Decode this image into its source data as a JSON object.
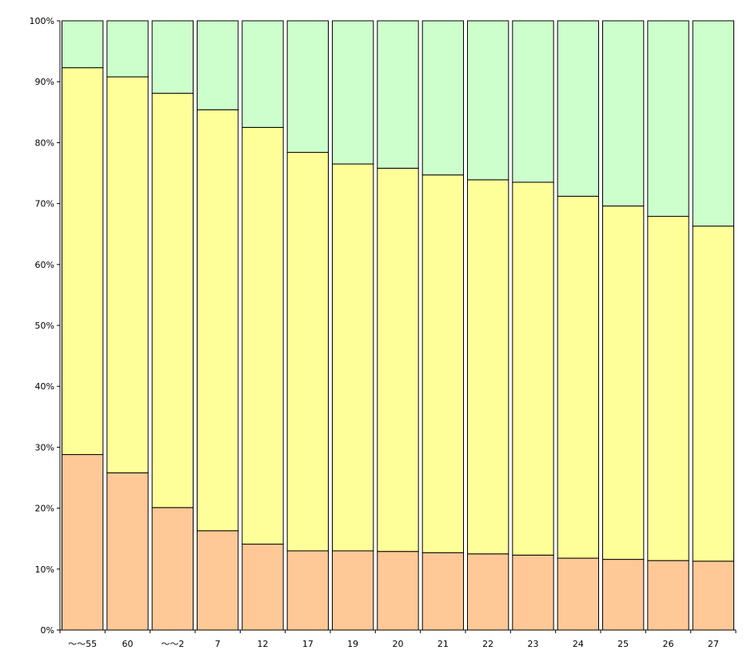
{
  "chart_data": {
    "type": "bar",
    "stacked": true,
    "normalized": true,
    "categories": [
      "～～55",
      "60",
      "～～2",
      "7",
      "12",
      "17",
      "19",
      "20",
      "21",
      "22",
      "23",
      "24",
      "25",
      "26",
      "27"
    ],
    "series": [
      {
        "color": "#FFC896",
        "values": [
          28.8,
          25.8,
          20.1,
          16.3,
          14.1,
          13.0,
          13.0,
          12.9,
          12.7,
          12.5,
          12.3,
          11.8,
          11.6,
          11.4,
          11.3
        ]
      },
      {
        "color": "#FFFF99",
        "values": [
          63.5,
          65.0,
          68.0,
          69.1,
          68.4,
          65.4,
          63.5,
          62.9,
          62.0,
          61.4,
          61.2,
          59.4,
          58.0,
          56.5,
          55.0
        ]
      },
      {
        "color": "#CCFFCC",
        "values": [
          7.7,
          9.2,
          11.9,
          14.6,
          17.5,
          21.6,
          23.5,
          24.2,
          25.3,
          26.1,
          26.5,
          28.8,
          30.4,
          32.1,
          33.7
        ]
      }
    ],
    "yticks": [
      "0%",
      "10%",
      "20%",
      "30%",
      "40%",
      "50%",
      "60%",
      "70%",
      "80%",
      "90%",
      "100%"
    ],
    "ylim": [
      0,
      100
    ],
    "grid": false,
    "legend": "none"
  }
}
